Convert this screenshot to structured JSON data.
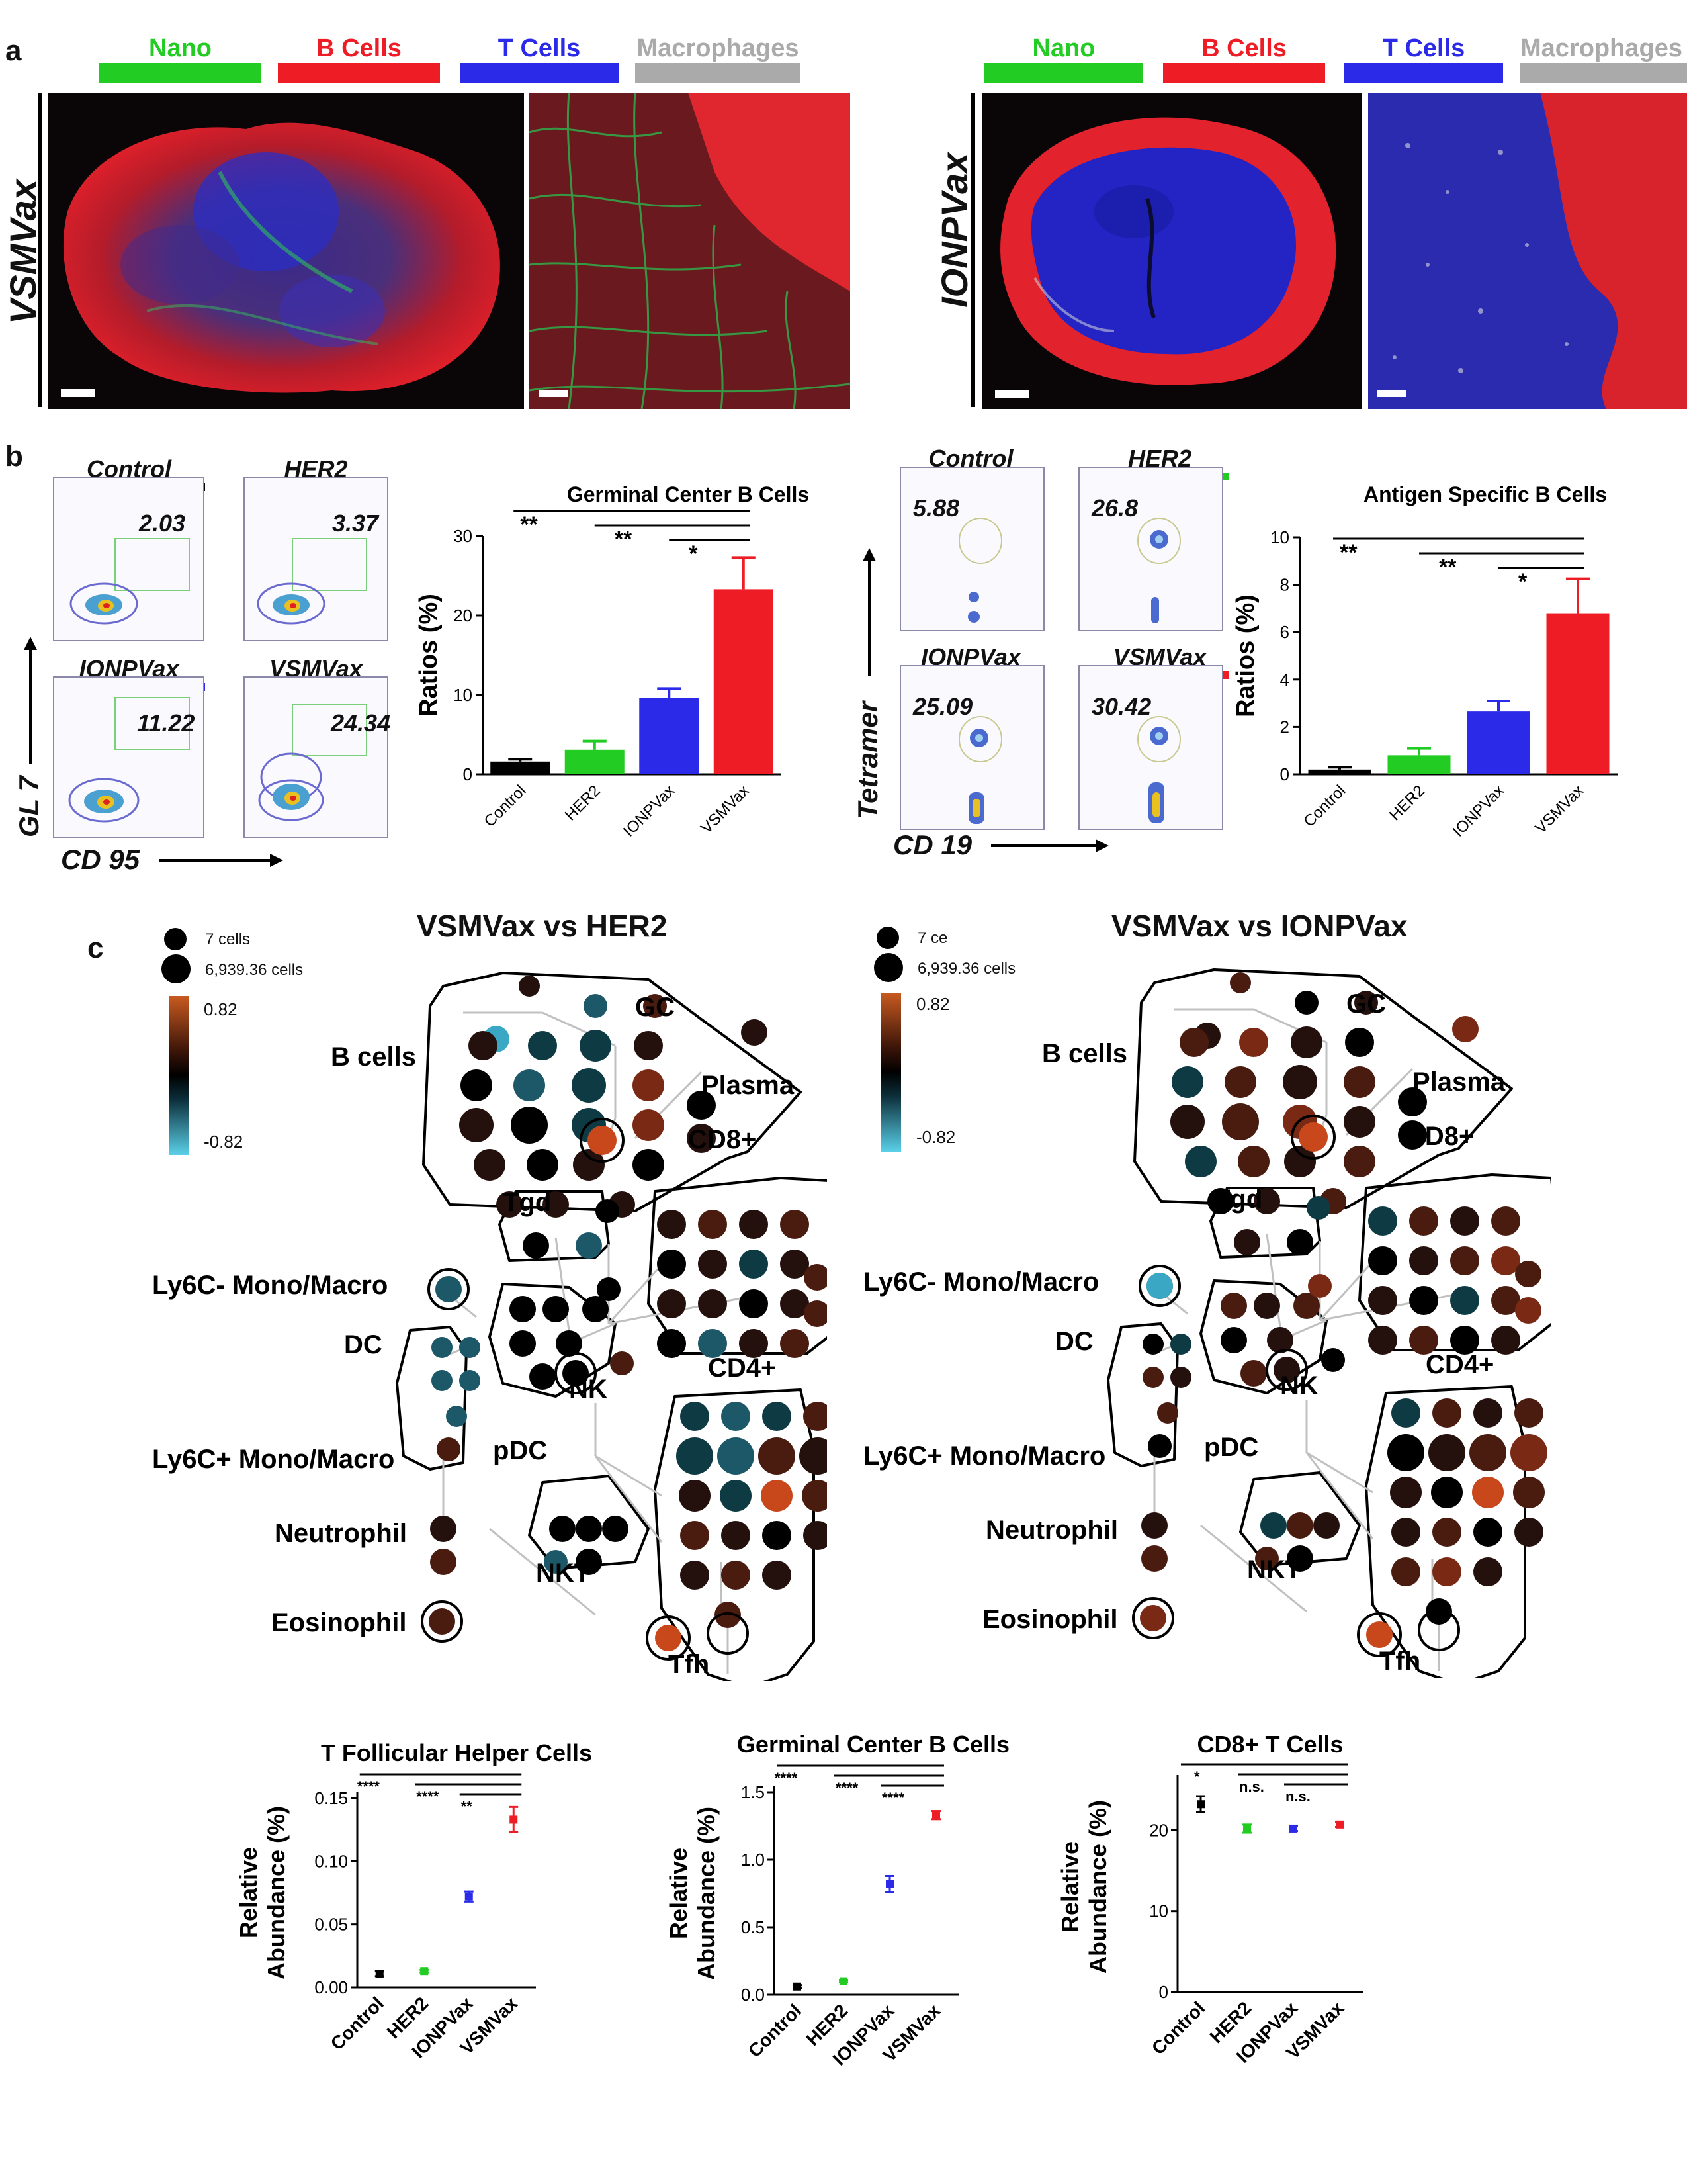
{
  "panel_a": {
    "letter": "a",
    "legend": [
      {
        "label": "Nano",
        "color": "#22cc22"
      },
      {
        "label": "B Cells",
        "color": "#ee1c24"
      },
      {
        "label": "T Cells",
        "color": "#2a2ae8"
      },
      {
        "label": "Macrophages",
        "color": "#aaaaaa"
      }
    ],
    "left_label": "VSMVax",
    "right_label": "IONPVax"
  },
  "panel_b": {
    "letter": "b",
    "flow_left": {
      "groups": [
        {
          "name": "Control",
          "value": "2.03",
          "color": "#000000"
        },
        {
          "name": "HER2",
          "value": "3.37",
          "color": "#22cc22"
        },
        {
          "name": "IONPVax",
          "value": "11.22",
          "color": "#2a2ae8"
        },
        {
          "name": "VSMVax",
          "value": "24.34",
          "color": "#ee1c24"
        }
      ],
      "y_axis": "GL 7",
      "x_axis": "CD 95"
    },
    "flow_right": {
      "groups": [
        {
          "name": "Control",
          "value": "5.88",
          "color": "#000000"
        },
        {
          "name": "HER2",
          "value": "26.8",
          "color": "#22cc22"
        },
        {
          "name": "IONPVax",
          "value": "25.09",
          "color": "#2a2ae8"
        },
        {
          "name": "VSMVax",
          "value": "30.42",
          "color": "#ee1c24"
        }
      ],
      "y_axis": "Tetramer",
      "x_axis": "CD 19"
    }
  },
  "panel_c": {
    "letter": "c",
    "left_title": "VSMVax vs HER2",
    "right_title": "VSMVax vs IONPVax",
    "size_legend": {
      "small": "7 cells",
      "large": "6,939.36 cells",
      "small_trunc": "7 ce"
    },
    "color_legend": {
      "max": "0.82",
      "min": "-0.82"
    },
    "clusters": [
      "B cells",
      "GC",
      "Plasma",
      "CD8+",
      "Tgd",
      "Ly6C- Mono/Macro",
      "DC",
      "NK",
      "CD4+",
      "pDC",
      "Ly6C+ Mono/Macro",
      "Neutrophil",
      "NKT",
      "Eosinophil",
      "Tfh"
    ]
  },
  "chart_data": [
    {
      "type": "bar",
      "title": "Germinal Center B Cells",
      "ylabel": "Ratios (%)",
      "categories": [
        "Control",
        "HER2",
        "IONPVax",
        "VSMVax"
      ],
      "values": [
        1.6,
        3.1,
        9.6,
        23.3
      ],
      "errors": [
        0.3,
        1.1,
        1.2,
        4.0
      ],
      "colors": [
        "#000000",
        "#22cc22",
        "#2a2ae8",
        "#ee1c24"
      ],
      "ylim": [
        0,
        30
      ],
      "yticks": [
        0,
        10,
        20,
        30
      ],
      "significance": [
        "**",
        "**",
        "*"
      ]
    },
    {
      "type": "bar",
      "title": "Antigen Specific B Cells",
      "ylabel": "Ratios (%)",
      "categories": [
        "Control",
        "HER2",
        "IONPVax",
        "VSMVax"
      ],
      "values": [
        0.2,
        0.8,
        2.65,
        6.8
      ],
      "errors": [
        0.1,
        0.3,
        0.45,
        1.45
      ],
      "colors": [
        "#000000",
        "#22cc22",
        "#2a2ae8",
        "#ee1c24"
      ],
      "ylim": [
        0,
        10
      ],
      "yticks": [
        0,
        2,
        4,
        6,
        8,
        10
      ],
      "significance": [
        "**",
        "**",
        "*"
      ]
    },
    {
      "type": "scatter",
      "title": "T Follicular Helper Cells",
      "ylabel": "Relative Abundance (%)",
      "categories": [
        "Control",
        "HER2",
        "IONPVax",
        "VSMVax"
      ],
      "values": [
        0.011,
        0.013,
        0.072,
        0.133
      ],
      "errors": [
        0.002,
        0.001,
        0.004,
        0.01
      ],
      "colors": [
        "#000000",
        "#22cc22",
        "#2a2ae8",
        "#ee1c24"
      ],
      "ylim": [
        0,
        0.15
      ],
      "yticks": [
        "0.00",
        "0.05",
        "0.10",
        "0.15"
      ],
      "ytick_vals": [
        0,
        0.05,
        0.1,
        0.15
      ],
      "significance": [
        "****",
        "****",
        "**"
      ]
    },
    {
      "type": "scatter",
      "title": "Germinal Center B Cells",
      "ylabel": "Relative Abundance (%)",
      "categories": [
        "Control",
        "HER2",
        "IONPVax",
        "VSMVax"
      ],
      "values": [
        0.06,
        0.1,
        0.82,
        1.33
      ],
      "errors": [
        0.01,
        0.01,
        0.06,
        0.03
      ],
      "colors": [
        "#000000",
        "#22cc22",
        "#2a2ae8",
        "#ee1c24"
      ],
      "ylim": [
        0,
        1.5
      ],
      "yticks": [
        "0.0",
        "0.5",
        "1.0",
        "1.5"
      ],
      "ytick_vals": [
        0,
        0.5,
        1.0,
        1.5
      ],
      "significance": [
        "****",
        "****",
        "****"
      ]
    },
    {
      "type": "scatter",
      "title": "CD8+ T Cells",
      "ylabel": "Relative Abundance (%)",
      "categories": [
        "Control",
        "HER2",
        "IONPVax",
        "VSMVax"
      ],
      "values": [
        23.2,
        20.2,
        20.2,
        20.7
      ],
      "errors": [
        1.0,
        0.5,
        0.3,
        0.3
      ],
      "colors": [
        "#000000",
        "#22cc22",
        "#2a2ae8",
        "#ee1c24"
      ],
      "ylim": [
        0,
        26
      ],
      "yticks": [
        "0",
        "10",
        "20"
      ],
      "ytick_vals": [
        0,
        10,
        20
      ],
      "significance": [
        "*",
        "n.s.",
        "n.s."
      ]
    }
  ]
}
